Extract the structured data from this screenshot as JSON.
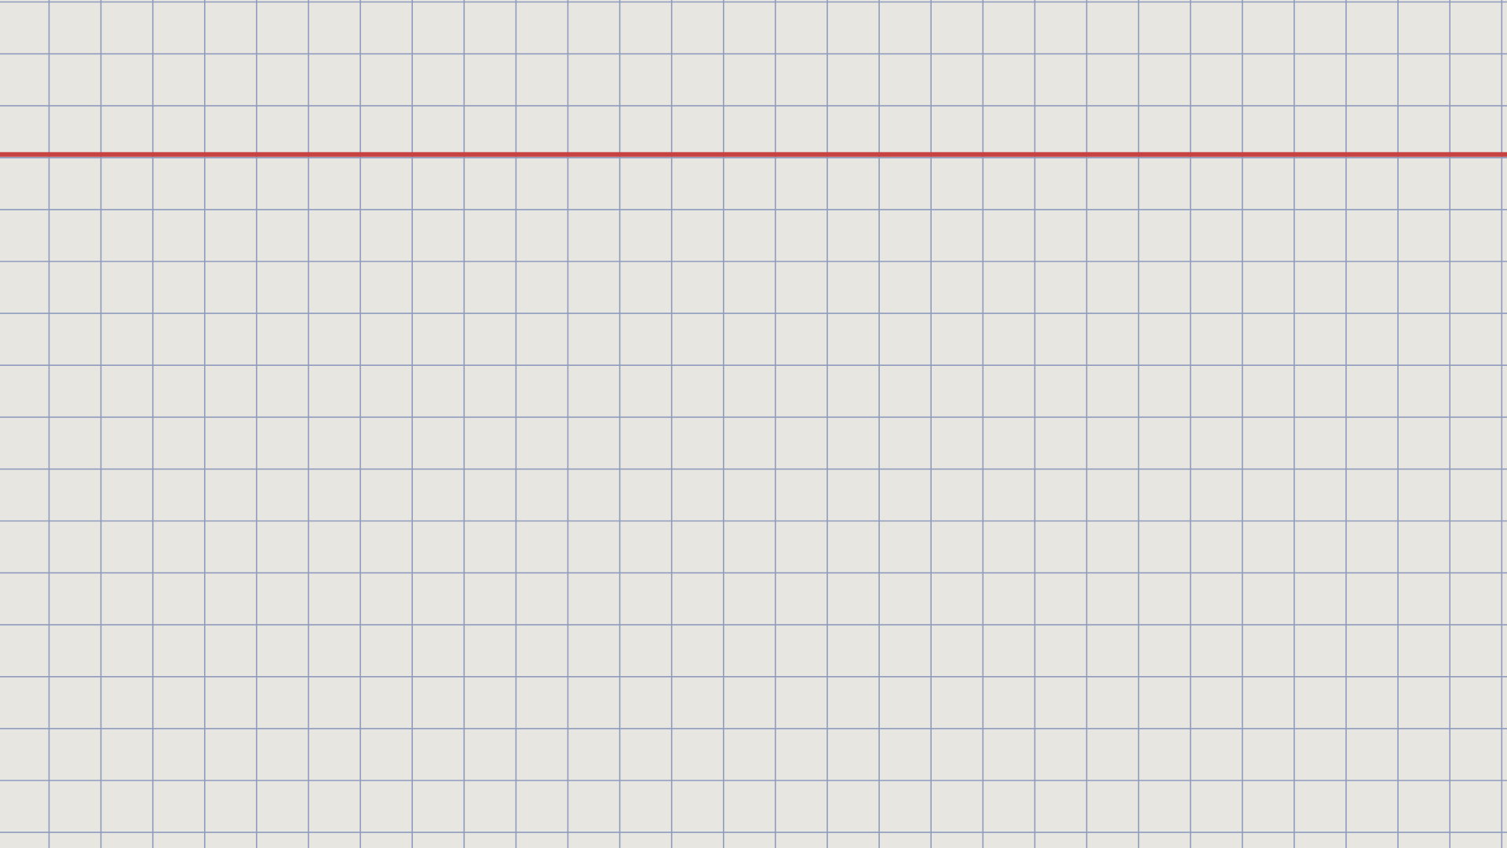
{
  "paper": {
    "style": "graph-paper",
    "background_color": "#e8e6e1",
    "grid_line_color": "#8e9bbd",
    "accent_line_color": "#c74342",
    "grid_columns": 29,
    "grid_rows": 16,
    "accent_line_after_row": 3
  }
}
